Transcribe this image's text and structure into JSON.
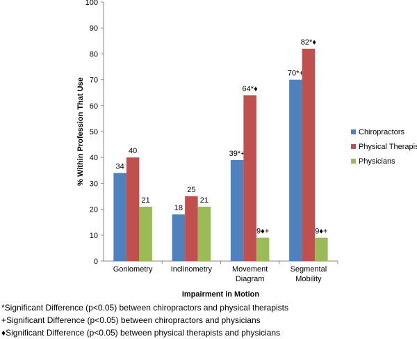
{
  "chart_data": {
    "type": "bar",
    "categories": [
      [
        "Goniometry"
      ],
      [
        "Inclinometry"
      ],
      [
        "Movement",
        "Diagram"
      ],
      [
        "Segmental",
        "Mobility"
      ]
    ],
    "series": [
      {
        "name": "Chiropractors",
        "color": "#4f81bd",
        "values": [
          34,
          18,
          39,
          70
        ],
        "labels": [
          "34",
          "18",
          "39*+",
          "70*+"
        ]
      },
      {
        "name": "Physical Therapists",
        "color": "#c0504d",
        "values": [
          40,
          25,
          64,
          82
        ],
        "labels": [
          "40",
          "25",
          "64*♦",
          "82*♦"
        ]
      },
      {
        "name": "Physicians",
        "color": "#9bbb59",
        "values": [
          21,
          21,
          9,
          9
        ],
        "labels": [
          "21",
          "21",
          "9♦+",
          "9♦+"
        ]
      }
    ],
    "xlabel": "Impairment in Motion",
    "ylabel": "% Within Profession That Use",
    "ylim": [
      0,
      100
    ],
    "yticks": [
      0,
      10,
      20,
      30,
      40,
      50,
      60,
      70,
      80,
      90,
      100
    ],
    "grid": false,
    "legend": "right"
  },
  "footnotes": [
    "*Significant Difference (p<0.05) between chiropractors and physical therapists",
    "+Significant Difference (p<0.05) between chiropractors and physicians",
    "♦Significant Difference (p<0.05) between physical therapists and physicians"
  ]
}
